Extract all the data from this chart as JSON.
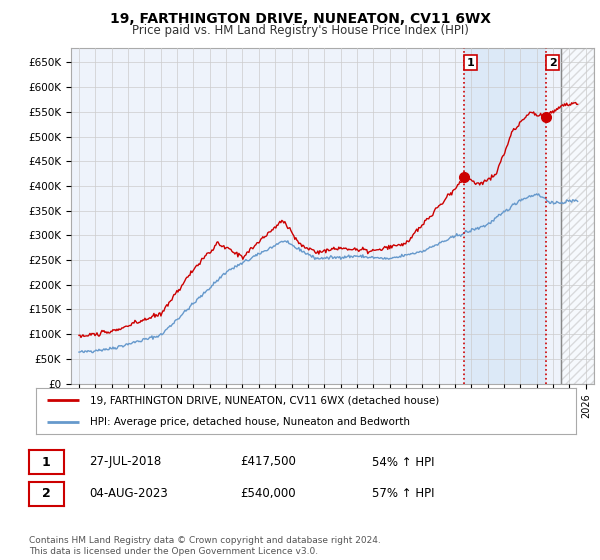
{
  "title": "19, FARTHINGTON DRIVE, NUNEATON, CV11 6WX",
  "subtitle": "Price paid vs. HM Land Registry's House Price Index (HPI)",
  "ylabel_ticks": [
    "£0",
    "£50K",
    "£100K",
    "£150K",
    "£200K",
    "£250K",
    "£300K",
    "£350K",
    "£400K",
    "£450K",
    "£500K",
    "£550K",
    "£600K",
    "£650K"
  ],
  "ytick_values": [
    0,
    50000,
    100000,
    150000,
    200000,
    250000,
    300000,
    350000,
    400000,
    450000,
    500000,
    550000,
    600000,
    650000
  ],
  "ylim": [
    0,
    680000
  ],
  "xlim_start": 1994.5,
  "xlim_end": 2026.5,
  "xticks": [
    1995,
    1996,
    1997,
    1998,
    1999,
    2000,
    2001,
    2002,
    2003,
    2004,
    2005,
    2006,
    2007,
    2008,
    2009,
    2010,
    2011,
    2012,
    2013,
    2014,
    2015,
    2016,
    2017,
    2018,
    2019,
    2020,
    2021,
    2022,
    2023,
    2024,
    2025,
    2026
  ],
  "sale1_x": 2018.57,
  "sale1_y": 417500,
  "sale1_label": "1",
  "sale2_x": 2023.59,
  "sale2_y": 540000,
  "sale2_label": "2",
  "vline1_x": 2018.57,
  "vline2_x": 2023.59,
  "future_start_x": 2024.5,
  "highlight_color": "#dce9f7",
  "future_hatch_color": "#cccccc",
  "legend_line1": "19, FARTHINGTON DRIVE, NUNEATON, CV11 6WX (detached house)",
  "legend_line2": "HPI: Average price, detached house, Nuneaton and Bedworth",
  "table_row1": [
    "1",
    "27-JUL-2018",
    "£417,500",
    "54% ↑ HPI"
  ],
  "table_row2": [
    "2",
    "04-AUG-2023",
    "£540,000",
    "57% ↑ HPI"
  ],
  "footer": "Contains HM Land Registry data © Crown copyright and database right 2024.\nThis data is licensed under the Open Government Licence v3.0.",
  "line_color_red": "#cc0000",
  "line_color_blue": "#6699cc",
  "bg_color": "#eef3fb",
  "sale_dot_color": "#cc0000",
  "vline_color": "#cc0000",
  "grid_color": "#cccccc",
  "table_border_color": "#cc0000",
  "title_fontsize": 10,
  "subtitle_fontsize": 8.5
}
